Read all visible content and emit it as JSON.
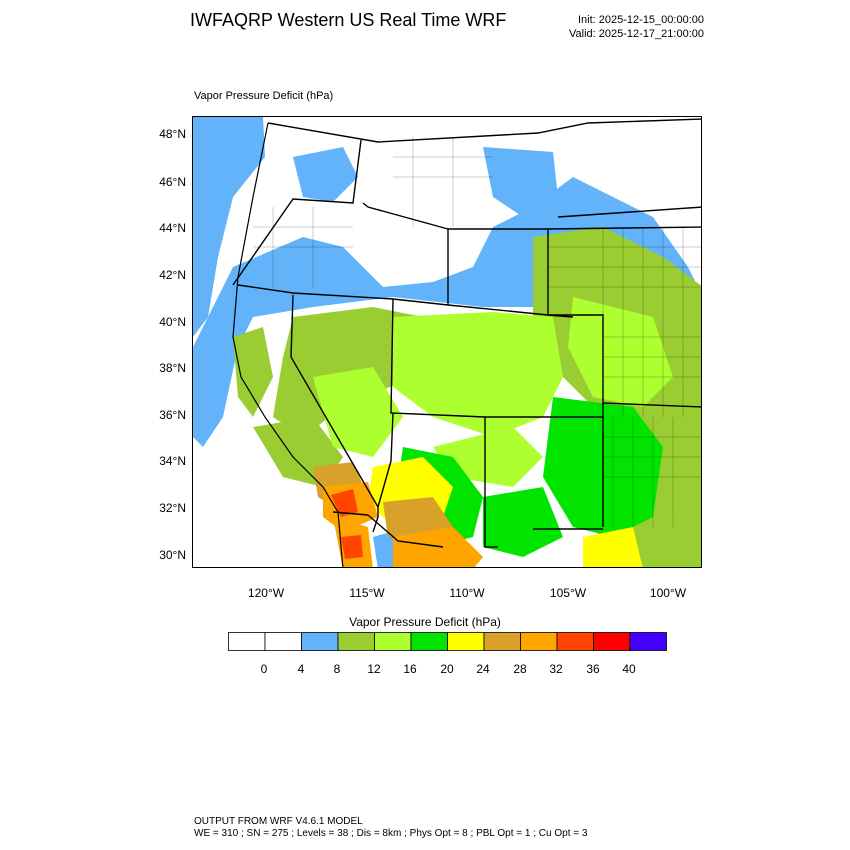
{
  "header": {
    "title": "IWFAQRP Western US Real Time WRF",
    "init": "Init: 2025-12-15_00:00:00",
    "valid": "Valid: 2025-12-17_21:00:00"
  },
  "field_title": "Vapor Pressure Deficit   (hPa)",
  "map": {
    "lat_labels": [
      "48°N",
      "46°N",
      "44°N",
      "42°N",
      "40°N",
      "38°N",
      "36°N",
      "34°N",
      "32°N",
      "30°N"
    ],
    "lon_labels": [
      "120°W",
      "115°W",
      "110°W",
      "105°W",
      "100°W"
    ]
  },
  "colorbar": {
    "title": "Vapor Pressure Deficit  (hPa)",
    "colors": [
      "#ffffff",
      "#ffffff",
      "#62b3f9",
      "#9acd32",
      "#adff2f",
      "#00e400",
      "#ffff00",
      "#d9a02a",
      "#ffa500",
      "#ff4500",
      "#ff0000",
      "#4400ff"
    ],
    "labels": [
      "0",
      "4",
      "8",
      "12",
      "16",
      "20",
      "24",
      "28",
      "32",
      "36",
      "40"
    ]
  },
  "footer": {
    "line1": "OUTPUT FROM WRF V4.6.1 MODEL",
    "line2": "WE = 310 ; SN = 275 ; Levels = 38 ; Dis = 8km ; Phys Opt = 8 ; PBL Opt = 1 ; Cu Opt = 3"
  }
}
